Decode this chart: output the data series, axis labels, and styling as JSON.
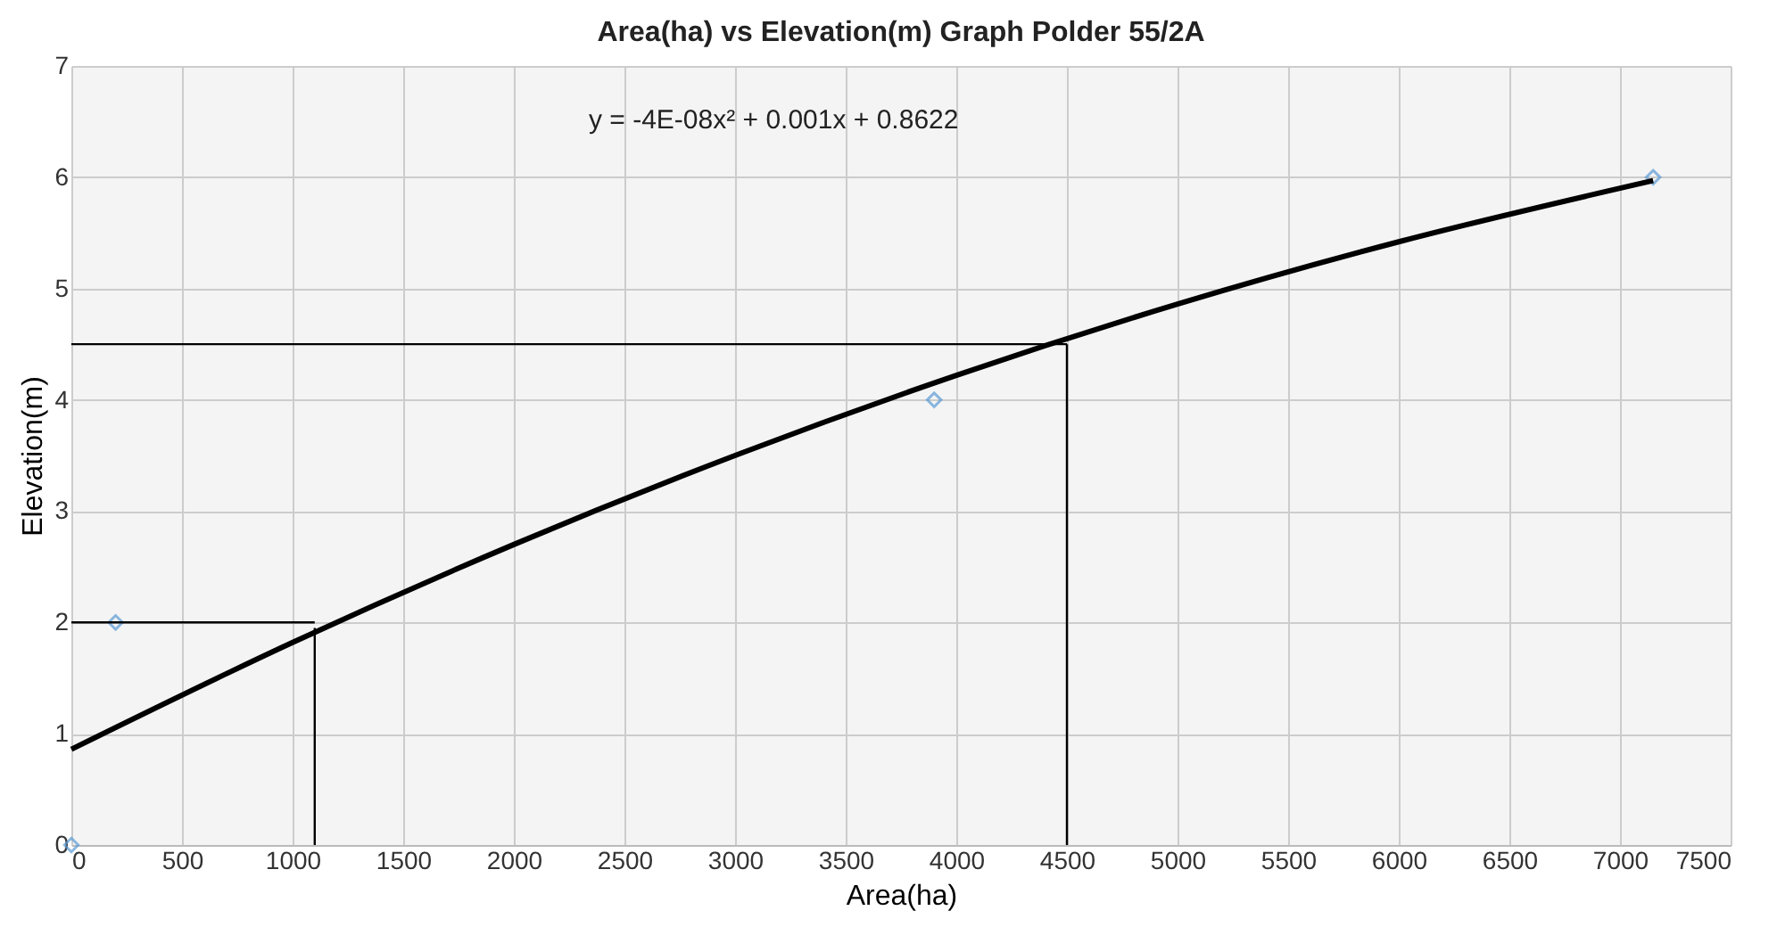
{
  "chart_data": {
    "type": "scatter",
    "title": "Area(ha) vs Elevation(m) Graph Polder 55/2A",
    "xlabel": "Area(ha)",
    "ylabel": "Elevation(m)",
    "xlim": [
      0,
      7500
    ],
    "xticks": [
      0,
      500,
      1000,
      1500,
      2000,
      2500,
      3000,
      3500,
      4000,
      4500,
      5000,
      5500,
      6000,
      6500,
      7000,
      7500
    ],
    "ylim": [
      0,
      7
    ],
    "yticks": [
      0,
      1,
      2,
      3,
      4,
      5,
      6,
      7
    ],
    "grid": true,
    "annotations": [
      "y = -4E-08x² + 0.001x + 0.8622"
    ],
    "series": [
      {
        "color": "#5b9bd5",
        "marker": "diamond",
        "x": [
          0,
          200,
          3900,
          7150
        ],
        "values": [
          0,
          2,
          4,
          6
        ]
      },
      {
        "type": "line",
        "color": "#000000",
        "marker": "none",
        "line_style": "solid",
        "x": [
          0,
          1000,
          2000,
          3000,
          4000,
          5000,
          6000,
          7150
        ],
        "values": [
          0.86,
          1.82,
          2.7,
          3.5,
          4.22,
          4.86,
          5.42,
          5.97
        ]
      },
      {
        "type": "line",
        "color": "#000000",
        "marker": "none",
        "line_style": "solid",
        "x": [
          0,
          1100
        ],
        "values": [
          2,
          2
        ]
      },
      {
        "type": "line",
        "color": "#000000",
        "marker": "none",
        "line_style": "solid",
        "x": [
          1100,
          1100
        ],
        "values": [
          0,
          1.95
        ]
      },
      {
        "type": "line",
        "color": "#000000",
        "marker": "none",
        "line_style": "solid",
        "x": [
          0,
          4500
        ],
        "values": [
          4.5,
          4.5
        ]
      },
      {
        "type": "line",
        "color": "#000000",
        "marker": "none",
        "line_style": "solid",
        "x": [
          4500,
          4500
        ],
        "values": [
          0,
          4.5
        ]
      }
    ]
  }
}
